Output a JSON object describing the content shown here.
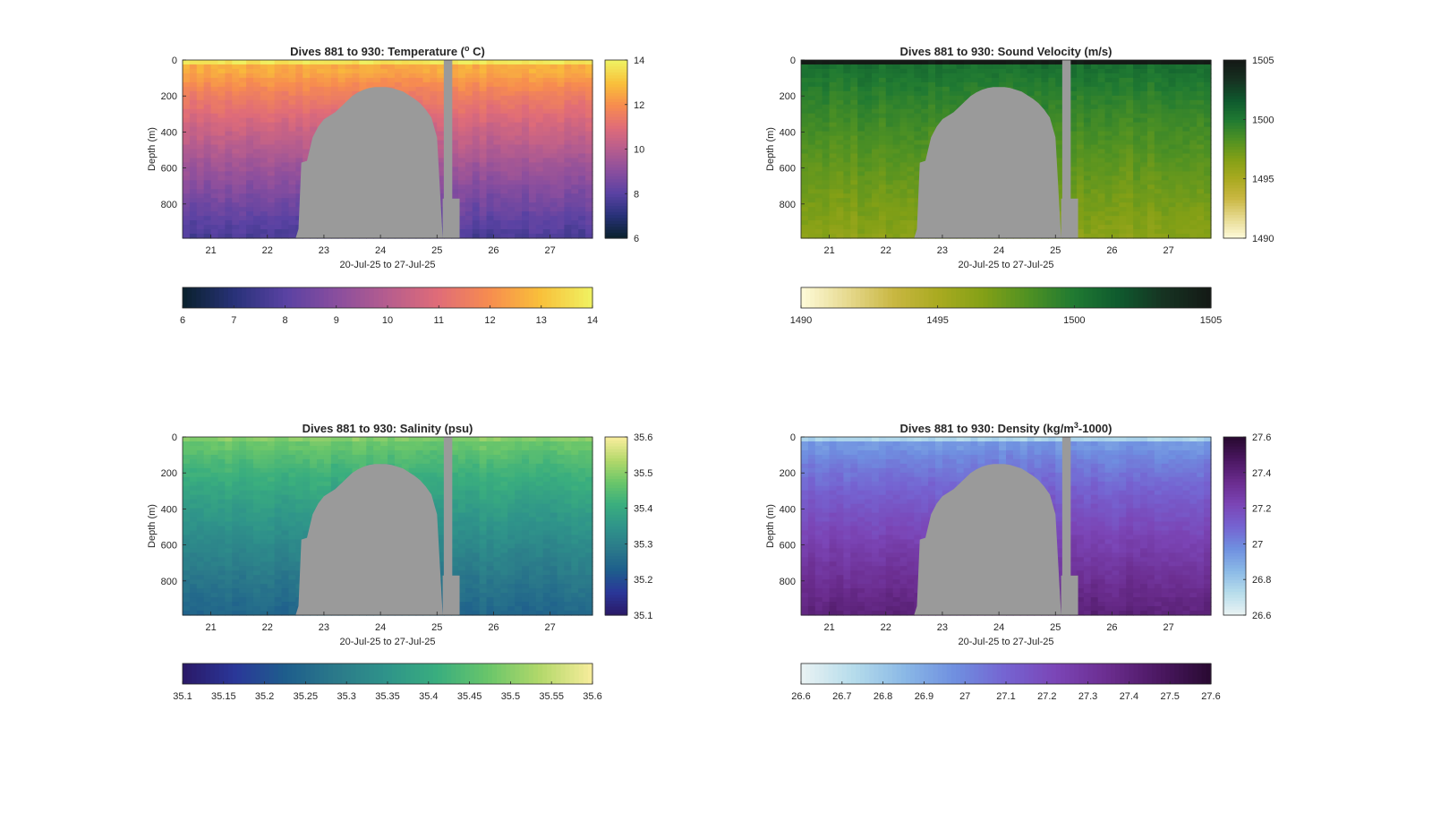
{
  "figure": {
    "background": "#ffffff",
    "axis_color": "#262626",
    "gap_color": "#9a9a9a"
  },
  "chart_data": [
    {
      "type": "heatmap",
      "id": "temperature",
      "title": "Dives 881 to 930: Temperature (°C)",
      "title_parts": {
        "pre": "Dives 881 to 930: Temperature (",
        "sup": "o",
        "post": " C)"
      },
      "xlabel": "20-Jul-25 to 27-Jul-25",
      "ylabel": "Depth (m)",
      "xlim": [
        20.5,
        27.75
      ],
      "ylim": [
        0,
        990
      ],
      "y_reversed": true,
      "xticks": [
        21,
        22,
        23,
        24,
        25,
        26,
        27
      ],
      "xtick_labels": [
        "21",
        "22",
        "23",
        "24",
        "25",
        "26",
        "27"
      ],
      "yticks": [
        0,
        200,
        400,
        600,
        800
      ],
      "ytick_labels": [
        "0",
        "200",
        "400",
        "600",
        "800"
      ],
      "clim": [
        6,
        14
      ],
      "colormap": [
        "#0b2230",
        "#29327a",
        "#5a42a3",
        "#8a4e9e",
        "#b65d8e",
        "#e06c78",
        "#f78c4f",
        "#f9bf3a",
        "#f0f060"
      ],
      "right_colorbar_ticks": [
        6,
        8,
        10,
        12,
        14
      ],
      "right_colorbar_labels": [
        "6",
        "8",
        "10",
        "12",
        "14"
      ],
      "bottom_colorbar_ticks": [
        6,
        7,
        8,
        9,
        10,
        11,
        12,
        13,
        14
      ],
      "bottom_colorbar_labels": [
        "6",
        "7",
        "8",
        "9",
        "10",
        "11",
        "12",
        "13",
        "14"
      ],
      "surface_value": 13.8,
      "near_surface_value": 12.6,
      "deep_value": 7.6,
      "thermocline_depth": 60
    },
    {
      "type": "heatmap",
      "id": "sound_velocity",
      "title": "Dives 881 to 930: Sound Velocity (m/s)",
      "title_parts": {
        "pre": "Dives 881 to 930: Sound Velocity (m/s)",
        "sup": "",
        "post": ""
      },
      "xlabel": "20-Jul-25 to 27-Jul-25",
      "ylabel": "Depth (m)",
      "xlim": [
        20.5,
        27.75
      ],
      "ylim": [
        0,
        990
      ],
      "y_reversed": true,
      "xticks": [
        21,
        22,
        23,
        24,
        25,
        26,
        27
      ],
      "xtick_labels": [
        "21",
        "22",
        "23",
        "24",
        "25",
        "26",
        "27"
      ],
      "yticks": [
        0,
        200,
        400,
        600,
        800
      ],
      "ytick_labels": [
        "0",
        "200",
        "400",
        "600",
        "800"
      ],
      "clim": [
        1490,
        1505
      ],
      "colormap": [
        "#fdf9d6",
        "#e6d98e",
        "#c9b742",
        "#a9aa20",
        "#83a016",
        "#4f9123",
        "#207a32",
        "#0f5a2e",
        "#163322",
        "#141a16"
      ],
      "right_colorbar_ticks": [
        1490,
        1495,
        1500,
        1505
      ],
      "right_colorbar_labels": [
        "1490",
        "1495",
        "1500",
        "1505"
      ],
      "bottom_colorbar_ticks": [
        1490,
        1495,
        1500,
        1505
      ],
      "bottom_colorbar_labels": [
        "1490",
        "1495",
        "1500",
        "1505"
      ],
      "surface_value": 1505,
      "near_surface_value": 1500.5,
      "deep_value": 1496.2,
      "thermocline_depth": 40
    },
    {
      "type": "heatmap",
      "id": "salinity",
      "title": "Dives 881 to 930: Salinity (psu)",
      "title_parts": {
        "pre": "Dives 881 to 930: Salinity (psu)",
        "sup": "",
        "post": ""
      },
      "xlabel": "20-Jul-25 to 27-Jul-25",
      "ylabel": "Depth (m)",
      "xlim": [
        20.5,
        27.75
      ],
      "ylim": [
        0,
        990
      ],
      "y_reversed": true,
      "xticks": [
        21,
        22,
        23,
        24,
        25,
        26,
        27
      ],
      "xtick_labels": [
        "21",
        "22",
        "23",
        "24",
        "25",
        "26",
        "27"
      ],
      "yticks": [
        0,
        200,
        400,
        600,
        800
      ],
      "ytick_labels": [
        "0",
        "200",
        "400",
        "600",
        "800"
      ],
      "clim": [
        35.1,
        35.6
      ],
      "colormap": [
        "#2a1a69",
        "#2a3799",
        "#1e5e8c",
        "#2b7a8a",
        "#2f948a",
        "#3aae7e",
        "#6ac66a",
        "#b2d86a",
        "#f5ec9a"
      ],
      "right_colorbar_ticks": [
        35.1,
        35.2,
        35.3,
        35.4,
        35.5,
        35.6
      ],
      "right_colorbar_labels": [
        "35.1",
        "35.2",
        "35.3",
        "35.4",
        "35.5",
        "35.6"
      ],
      "bottom_colorbar_ticks": [
        35.1,
        35.15,
        35.2,
        35.25,
        35.3,
        35.35,
        35.4,
        35.45,
        35.5,
        35.55,
        35.6
      ],
      "bottom_colorbar_labels": [
        "35.1",
        "35.15",
        "35.2",
        "35.25",
        "35.3",
        "35.35",
        "35.4",
        "35.45",
        "35.5",
        "35.55",
        "35.6"
      ],
      "surface_value": 35.5,
      "near_surface_value": 35.47,
      "deep_value": 35.24,
      "thermocline_depth": 50
    },
    {
      "type": "heatmap",
      "id": "density",
      "title": "Dives 881 to 930: Density (kg/m³-1000)",
      "title_parts": {
        "pre": "Dives 881 to 930: Density (kg/m",
        "sup": "3",
        "post": "-1000)"
      },
      "xlabel": "20-Jul-25 to 27-Jul-25",
      "ylabel": "Depth (m)",
      "xlim": [
        20.5,
        27.75
      ],
      "ylim": [
        0,
        990
      ],
      "y_reversed": true,
      "xticks": [
        21,
        22,
        23,
        24,
        25,
        26,
        27
      ],
      "xtick_labels": [
        "21",
        "22",
        "23",
        "24",
        "25",
        "26",
        "27"
      ],
      "yticks": [
        0,
        200,
        400,
        600,
        800
      ],
      "ytick_labels": [
        "0",
        "200",
        "400",
        "600",
        "800"
      ],
      "clim": [
        26.6,
        27.6
      ],
      "colormap": [
        "#e8f2f3",
        "#b5dceb",
        "#8ab8e6",
        "#6f8fe0",
        "#7563d1",
        "#7b45b6",
        "#6b2d8f",
        "#4c1863",
        "#2a0a33"
      ],
      "right_colorbar_ticks": [
        26.6,
        26.8,
        27.0,
        27.2,
        27.4,
        27.6
      ],
      "right_colorbar_labels": [
        "26.6",
        "26.8",
        "27",
        "27.2",
        "27.4",
        "27.6"
      ],
      "bottom_colorbar_ticks": [
        26.6,
        26.7,
        26.8,
        26.9,
        27.0,
        27.1,
        27.2,
        27.3,
        27.4,
        27.5,
        27.6
      ],
      "bottom_colorbar_labels": [
        "26.6",
        "26.7",
        "26.8",
        "26.9",
        "27",
        "27.1",
        "27.2",
        "27.3",
        "27.4",
        "27.5",
        "27.6"
      ],
      "surface_value": 26.75,
      "near_surface_value": 26.95,
      "deep_value": 27.42,
      "thermocline_depth": 45
    }
  ]
}
